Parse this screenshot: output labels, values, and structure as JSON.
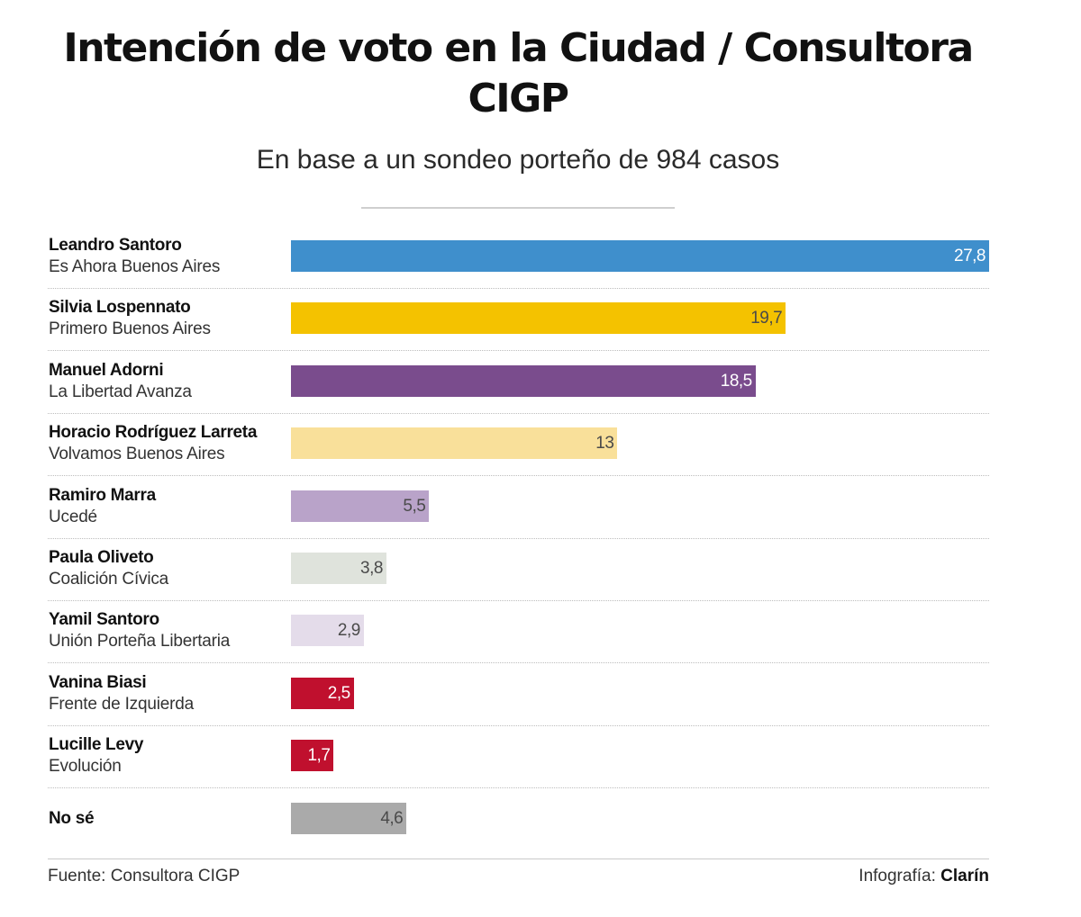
{
  "header": {
    "title": "Intención de voto en la Ciudad / Consultora CIGP",
    "subtitle": "En base a un sondeo porteño de 984 casos"
  },
  "footer": {
    "source": "Fuente: Consultora CIGP",
    "credit_prefix": "Infografía: ",
    "credit_brand": "Clarín"
  },
  "chart_data": {
    "type": "bar",
    "orientation": "horizontal",
    "categories": [
      {
        "name": "Leandro Santoro",
        "party": "Es Ahora Buenos Aires"
      },
      {
        "name": "Silvia Lospennato",
        "party": "Primero Buenos Aires"
      },
      {
        "name": "Manuel Adorni",
        "party": "La Libertad Avanza"
      },
      {
        "name": "Horacio Rodríguez Larreta",
        "party": "Volvamos Buenos Aires"
      },
      {
        "name": "Ramiro Marra",
        "party": "Ucedé"
      },
      {
        "name": "Paula Oliveto",
        "party": "Coalición Cívica"
      },
      {
        "name": "Yamil Santoro",
        "party": "Unión Porteña Libertaria"
      },
      {
        "name": "Vanina Biasi",
        "party": "Frente de Izquierda"
      },
      {
        "name": "Lucille Levy",
        "party": "Evolución"
      },
      {
        "name": "No sé",
        "party": ""
      }
    ],
    "values": [
      27.8,
      19.7,
      18.5,
      13,
      5.5,
      3.8,
      2.9,
      2.5,
      1.7,
      4.6
    ],
    "value_labels": [
      "27,8",
      "19,7",
      "18,5",
      "13",
      "5,5",
      "3,8",
      "2,9",
      "2,5",
      "1,7",
      "4,6"
    ],
    "colors": [
      "#3f8fcc",
      "#f4c200",
      "#7a4c8d",
      "#f9e09a",
      "#b9a3c9",
      "#dfe3dc",
      "#e4dcea",
      "#c0102e",
      "#c0102e",
      "#aaaaaa"
    ],
    "label_colors": [
      "#ffffff",
      "#4a4a4a",
      "#ffffff",
      "#4a4a4a",
      "#4a4a4a",
      "#4a4a4a",
      "#4a4a4a",
      "#ffffff",
      "#ffffff",
      "#4a4a4a"
    ],
    "xlim": [
      0,
      27.8
    ],
    "grid": false,
    "legend": "none"
  }
}
